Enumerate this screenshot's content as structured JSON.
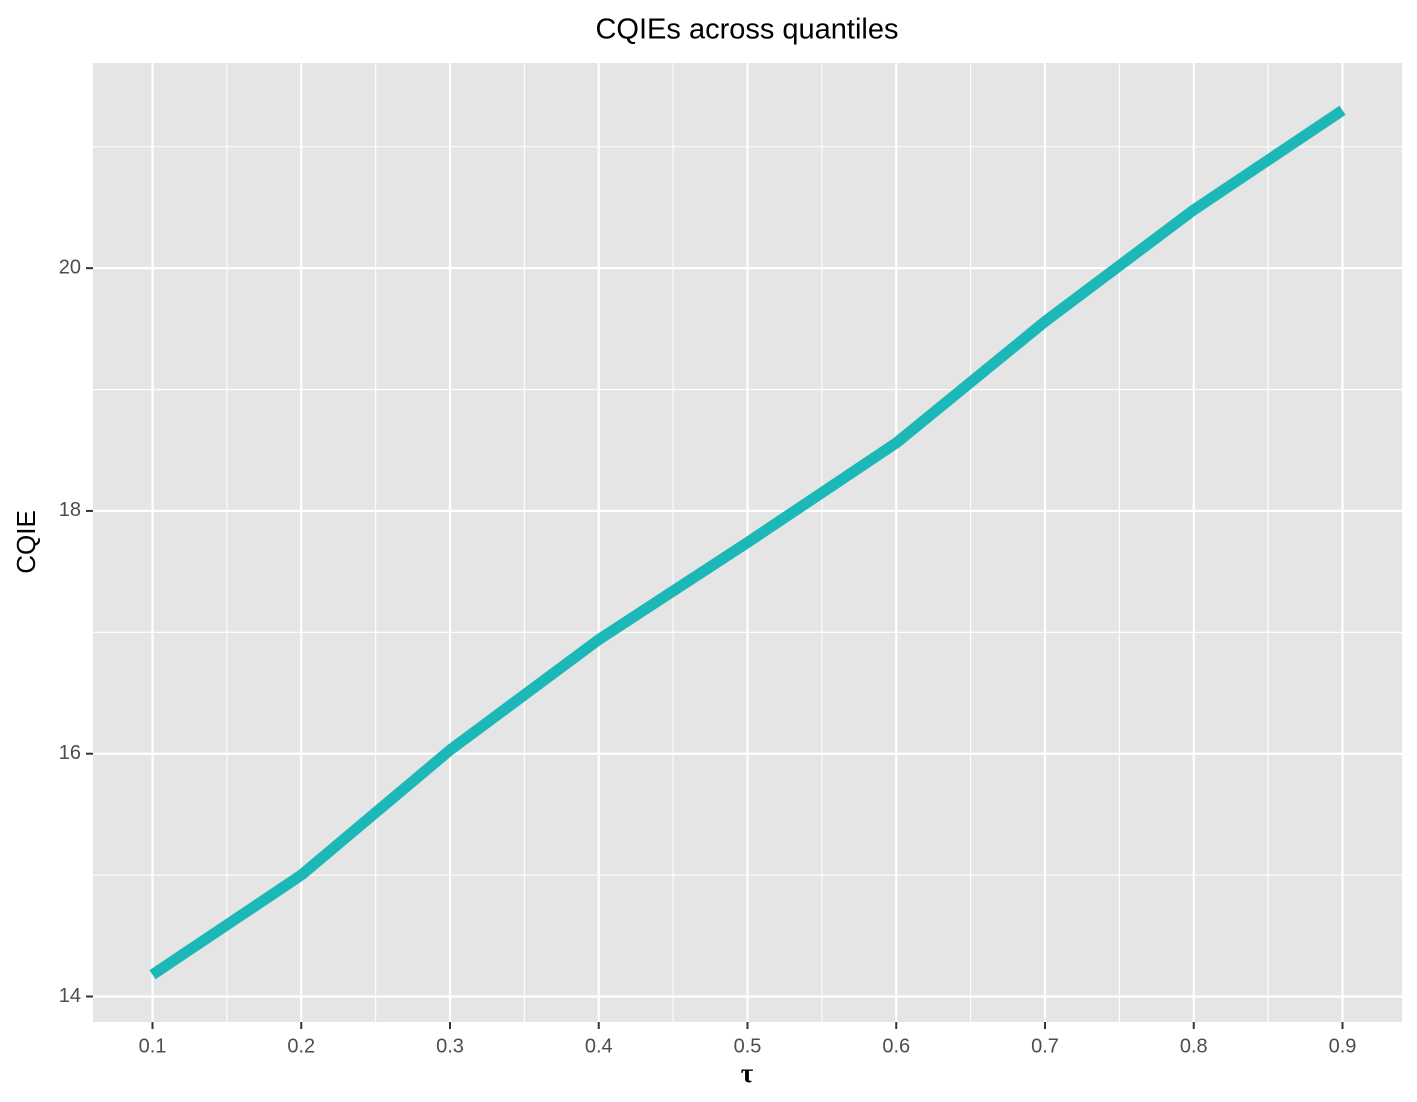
{
  "chart_data": {
    "type": "line",
    "title": "CQIEs across quantiles",
    "x_label": "τ",
    "y_label": "CQIE",
    "x": [
      0.1,
      0.2,
      0.3,
      0.4,
      0.5,
      0.6,
      0.7,
      0.8,
      0.9
    ],
    "series": [
      {
        "color": "#1cb7b7",
        "values": [
          14.18,
          15.0,
          16.03,
          16.94,
          17.74,
          18.56,
          19.56,
          20.48,
          21.3
        ]
      }
    ],
    "xlim": [
      0.06,
      0.94
    ],
    "ylim": [
      13.79,
      21.69
    ],
    "xticks": [
      0.1,
      0.2,
      0.3,
      0.4,
      0.5,
      0.6,
      0.7,
      0.8,
      0.9
    ],
    "yticks": [
      14,
      16,
      18,
      20
    ],
    "xminor_ticks": [
      0.15,
      0.25,
      0.35,
      0.45,
      0.55,
      0.65,
      0.75,
      0.85
    ],
    "yminor_ticks": [
      15,
      17,
      19,
      21
    ],
    "grid": true,
    "panel_color": "#e5e5e5"
  }
}
